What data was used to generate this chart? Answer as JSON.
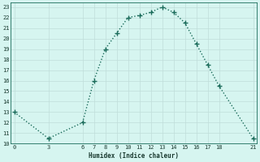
{
  "x": [
    0,
    3,
    6,
    7,
    8,
    9,
    10,
    11,
    12,
    13,
    14,
    15,
    16,
    17,
    18,
    21
  ],
  "y": [
    13,
    10.5,
    12,
    16,
    19,
    20.5,
    22,
    22.2,
    22.5,
    23,
    22.5,
    21.5,
    19.5,
    17.5,
    15.5,
    10.5
  ],
  "x_ticks": [
    0,
    3,
    6,
    7,
    8,
    9,
    10,
    11,
    12,
    13,
    14,
    15,
    16,
    17,
    18,
    21
  ],
  "y_ticks": [
    10,
    11,
    12,
    13,
    14,
    15,
    16,
    17,
    18,
    19,
    20,
    21,
    22,
    23
  ],
  "xlim": [
    -0.3,
    21.3
  ],
  "ylim": [
    10,
    23.4
  ],
  "xlabel": "Humidex (Indice chaleur)",
  "line_color": "#1a6b5a",
  "bg_color": "#d6f5f0",
  "grid_color_major": "#c0deda",
  "grid_color_minor": "#c8e8e4",
  "font_family": "monospace"
}
